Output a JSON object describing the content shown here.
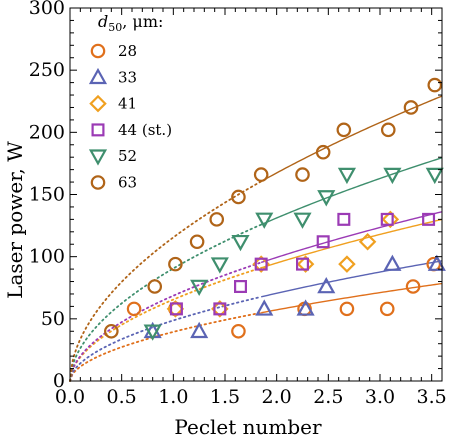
{
  "chart_data": {
    "type": "scatter",
    "title": "",
    "xlabel": "Peclet number",
    "ylabel": "Laser power, W",
    "xlim": [
      0,
      3.6
    ],
    "ylim": [
      0,
      300
    ],
    "xticks": [
      "0.0",
      "0.5",
      "1.0",
      "1.5",
      "2.0",
      "2.5",
      "3.0",
      "3.5"
    ],
    "yticks": [
      "0",
      "50",
      "100",
      "150",
      "200",
      "250",
      "300"
    ],
    "legend_title_main": "d",
    "legend_title_sub": "50",
    "legend_title_unit": ", μm:",
    "legend_position": "top-left",
    "series": [
      {
        "name": "28",
        "marker": "circle",
        "color": "#e0701c",
        "x": [
          0.62,
          1.02,
          1.63,
          2.27,
          2.68,
          3.07,
          3.32,
          3.52
        ],
        "y": [
          58,
          58,
          40,
          58,
          58,
          58,
          76,
          94
        ],
        "fit": {
          "a": 39.5,
          "b": 0.535,
          "x_start": 1.85
        }
      },
      {
        "name": "33",
        "marker": "triangle",
        "color": "#5b64b4",
        "x": [
          0.8,
          1.25,
          1.88,
          2.28,
          2.48,
          3.12,
          3.55
        ],
        "y": [
          40,
          40,
          58,
          58,
          76,
          94,
          94
        ],
        "fit": {
          "a": 48.7,
          "b": 0.535,
          "x_start": 1.85
        }
      },
      {
        "name": "41",
        "marker": "diamond",
        "color": "#f0a020",
        "x": [
          1.02,
          1.45,
          1.85,
          2.28,
          2.68,
          2.88,
          3.1
        ],
        "y": [
          58,
          58,
          94,
          94,
          94,
          112,
          130
        ],
        "fit": {
          "a": 65.5,
          "b": 0.535,
          "x_start": 1.85
        }
      },
      {
        "name": "44 (st.)",
        "marker": "square",
        "color": "#9b3bb5",
        "x": [
          1.03,
          1.45,
          1.65,
          1.85,
          2.25,
          2.45,
          2.65,
          3.07,
          3.47
        ],
        "y": [
          58,
          58,
          76,
          94,
          94,
          112,
          130,
          130,
          130
        ],
        "fit": {
          "a": 68.6,
          "b": 0.535,
          "x_start": 1.85
        }
      },
      {
        "name": "52",
        "marker": "inverted-triangle",
        "color": "#3f8f6e",
        "x": [
          0.8,
          1.25,
          1.45,
          1.65,
          1.88,
          2.25,
          2.48,
          2.68,
          3.12,
          3.53
        ],
        "y": [
          40,
          76,
          94,
          112,
          130,
          130,
          148,
          166,
          166,
          166
        ],
        "fit": {
          "a": 90.5,
          "b": 0.535,
          "x_start": 1.85
        }
      },
      {
        "name": "63",
        "marker": "circle",
        "color": "#b06418",
        "x": [
          0.4,
          0.82,
          1.02,
          1.23,
          1.42,
          1.63,
          1.85,
          2.25,
          2.45,
          2.65,
          3.08,
          3.3,
          3.53
        ],
        "y": [
          40,
          76,
          94,
          112,
          130,
          148,
          166,
          166,
          184,
          202,
          202,
          220,
          238
        ],
        "fit": {
          "a": 115.5,
          "b": 0.535,
          "x_start": 1.85
        }
      }
    ]
  }
}
